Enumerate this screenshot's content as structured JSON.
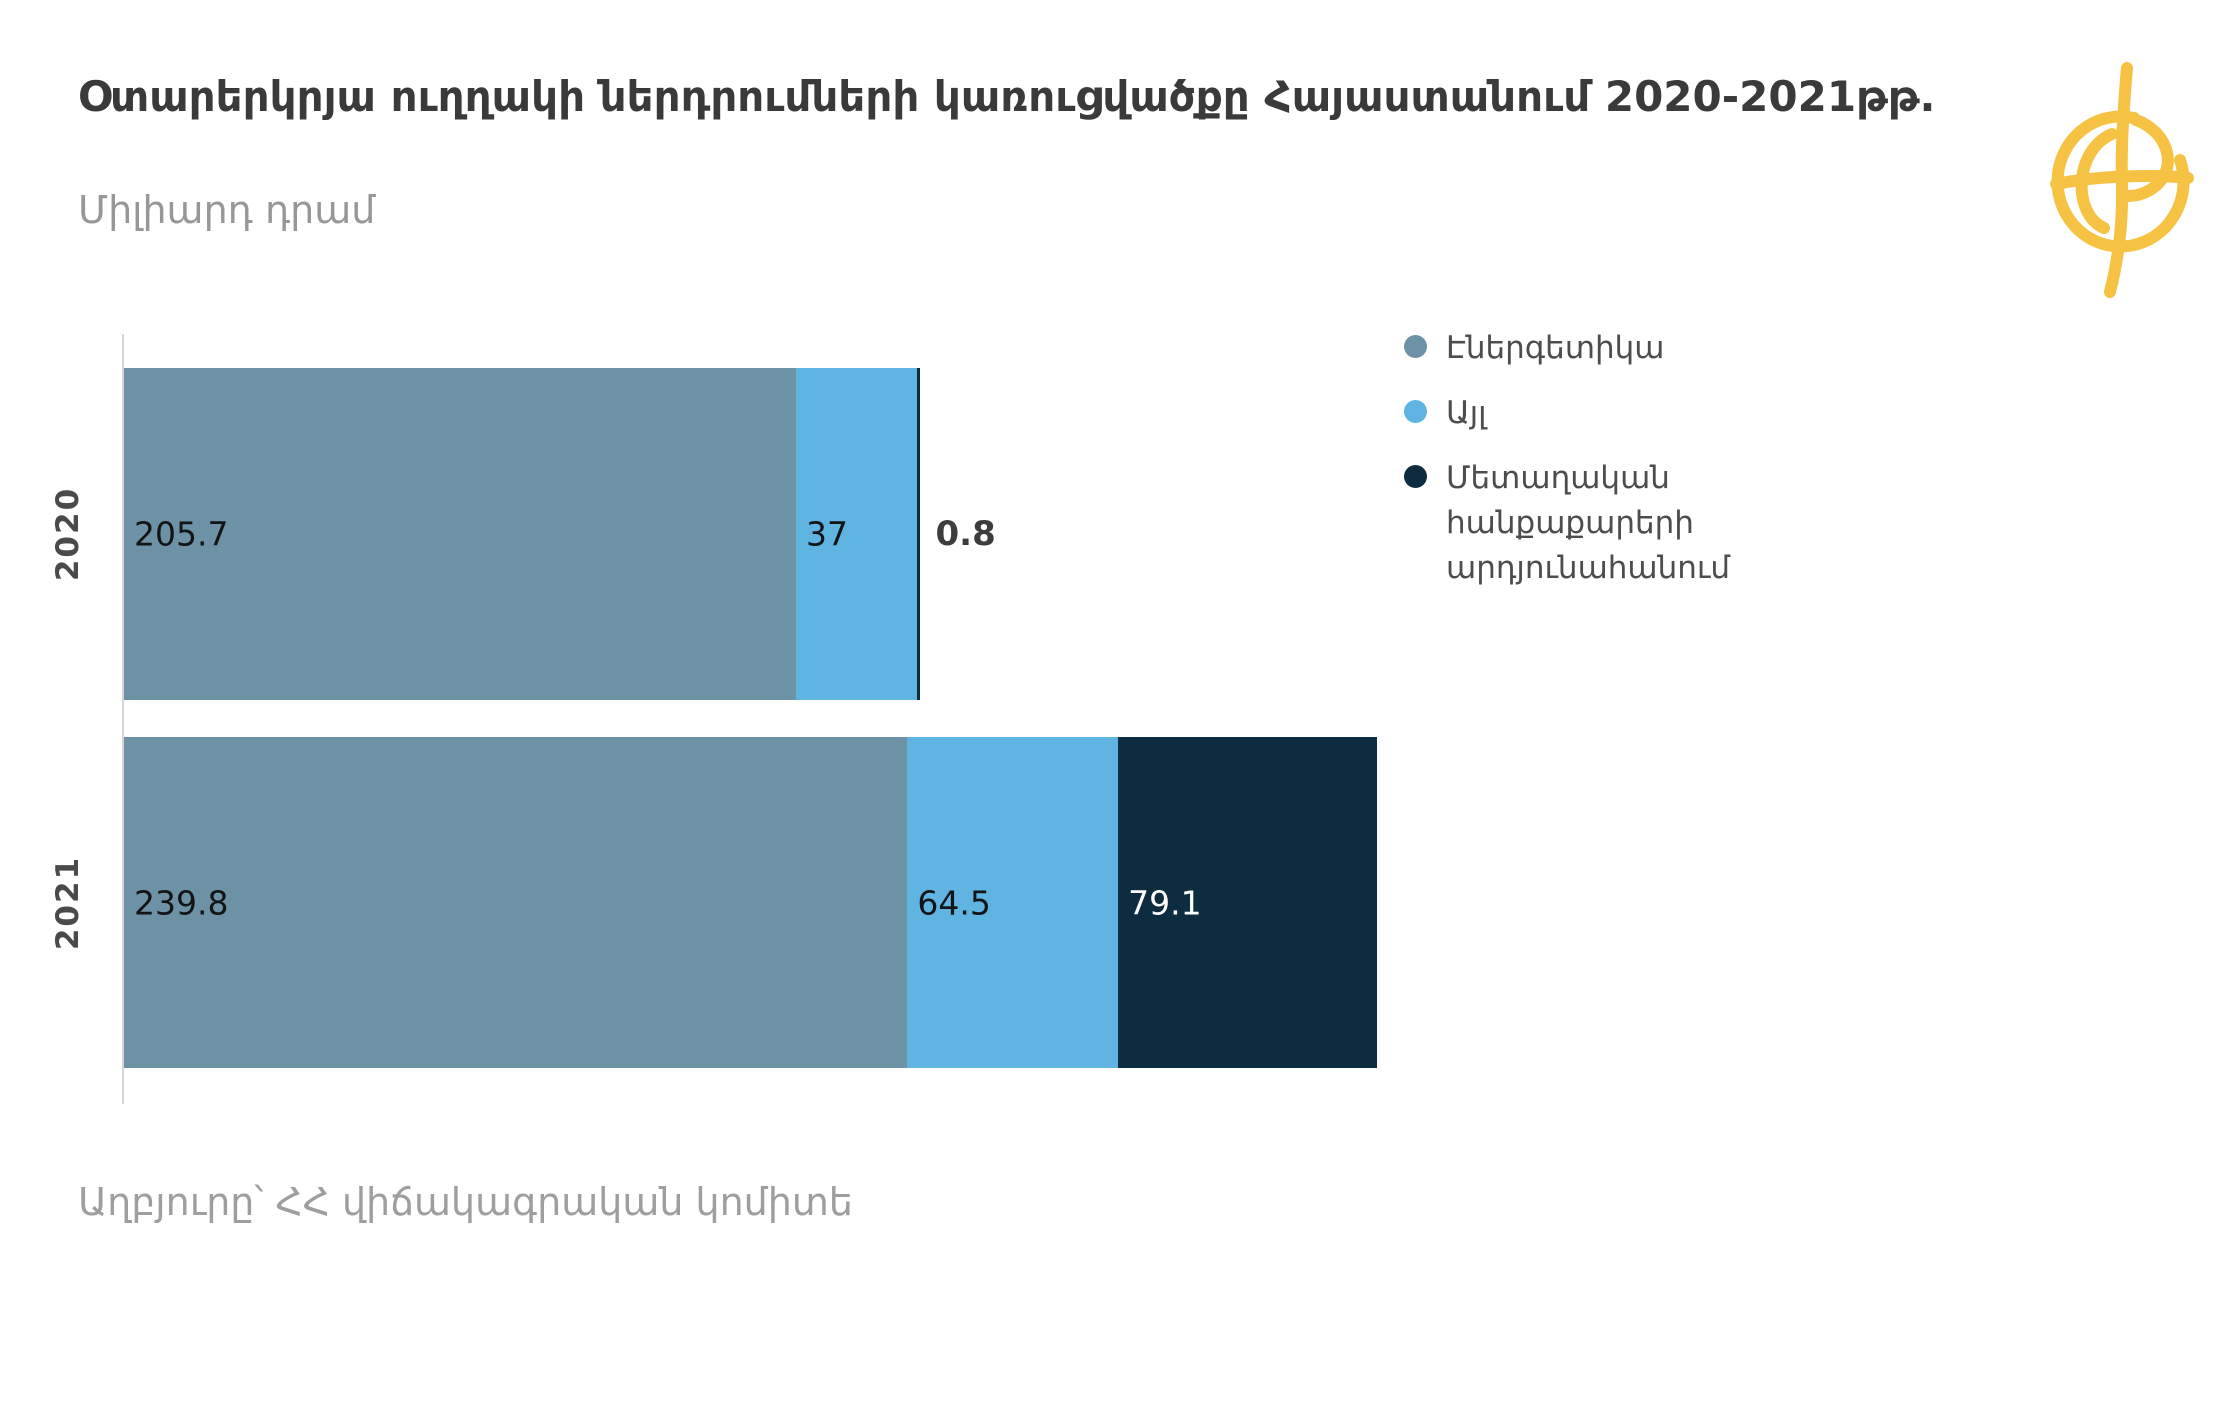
{
  "title": "Օտարերկրյա ուղղակի ներդրումների կառուցվածքը Հայաստանում 2020-2021թթ.",
  "subtitle": "Միլիարդ դրամ",
  "source": "Աղբյուրը՝ ՀՀ վիճակագրական կոմիտե",
  "logo": {
    "name": "civilnet-globe-logo",
    "color": "#F6C243"
  },
  "chart_data": {
    "type": "bar",
    "orientation": "horizontal",
    "stacked": true,
    "title": "Օտարերկրյա ուղղակի ներդրումների կառուցվածքը Հայաստանում 2020-2021թթ.",
    "unit_label": "Միլիարդ դրամ",
    "categories": [
      "2020",
      "2021"
    ],
    "series": [
      {
        "name": "Էներգետիկա",
        "color": "#6D92A6",
        "values": [
          205.7,
          239.8
        ]
      },
      {
        "name": "Այլ",
        "color": "#5FB4E2",
        "values": [
          37,
          64.5
        ]
      },
      {
        "name": "Մետաղական հանքաքարերի արդյունահանում",
        "color": "#0E2C3F",
        "values": [
          0.8,
          79.1
        ]
      }
    ],
    "value_labels": [
      [
        "205.7",
        "37",
        "0.8"
      ],
      [
        "239.8",
        "64.5",
        "79.1"
      ]
    ],
    "xlim": [
      0,
      395
    ],
    "grid": false,
    "legend_position": "right",
    "axis_color": "#D6D6D6"
  }
}
